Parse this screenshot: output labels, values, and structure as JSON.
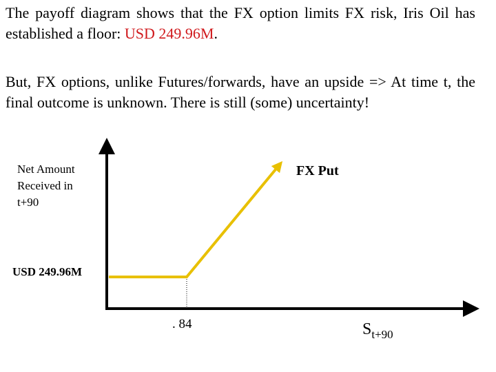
{
  "text": {
    "paragraph1": {
      "before": "The payoff diagram shows that the FX option limits FX risk, Iris Oil has established a floor: ",
      "highlight": "USD 249.96M",
      "after": "."
    },
    "paragraph2": "But, FX options, unlike Futures/forwards, have an upside => At time t, the final outcome is unknown. There is still (some) uncertainty!"
  },
  "diagram": {
    "y_axis_label": [
      "Net Amount",
      "Received in",
      "t+90"
    ],
    "curve_label": "FX Put",
    "floor_label": "USD 249.96M",
    "strike_label": ". 84",
    "x_axis_label": {
      "base": "S",
      "subscript": "t+90"
    }
  }
}
